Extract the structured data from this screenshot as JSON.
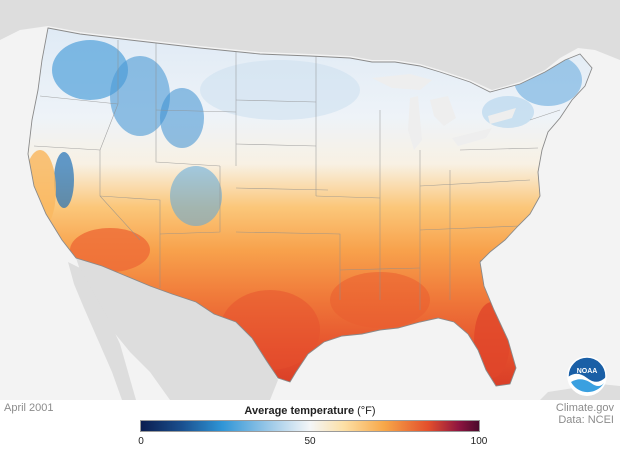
{
  "map": {
    "period": "April 2001",
    "legend": {
      "title": "Average temperature",
      "unit": "(°F)",
      "min_label": "0",
      "mid_label": "50",
      "max_label": "100",
      "range": [
        0,
        100
      ]
    },
    "credit": {
      "line1": "Climate.gov",
      "line2": "Data: NCEI"
    },
    "logo_text": "NOAA",
    "colors": {
      "cold": "#2f95d6",
      "neutral": "#f4f6f8",
      "warm": "#f7a748",
      "hot": "#e34f2c",
      "background": "#f3f3f3",
      "neighbor_land": "#dddddd"
    }
  }
}
